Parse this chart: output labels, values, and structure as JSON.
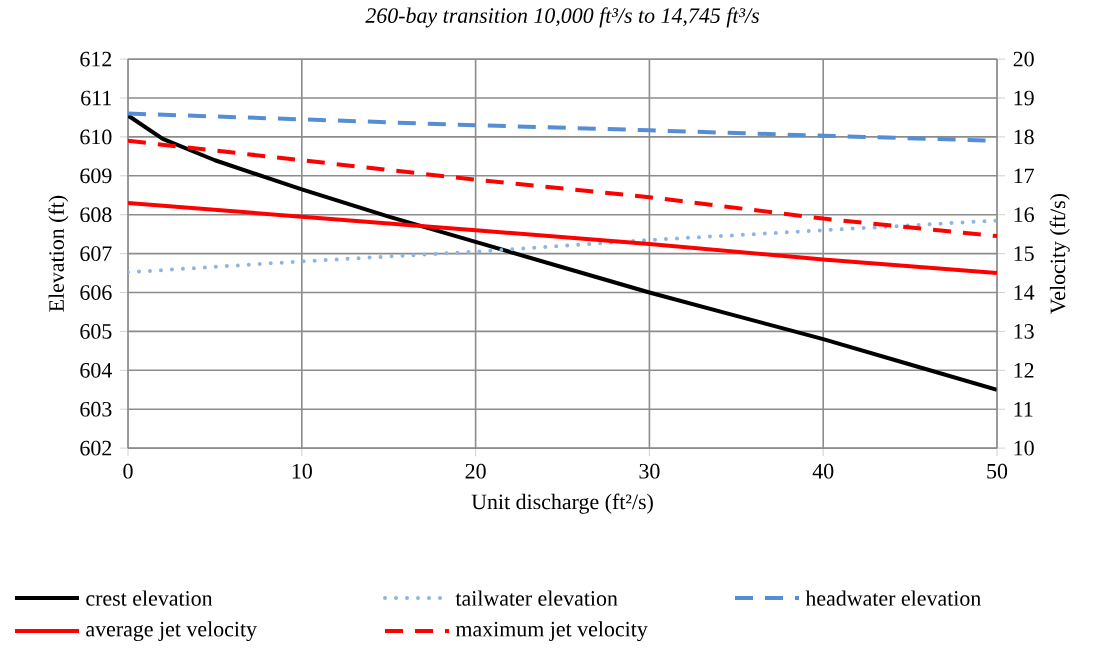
{
  "chart_data": {
    "type": "line",
    "title": "260-bay transition 10,000 ft³/s to 14,745 ft³/s",
    "xlabel": "Unit discharge (ft²/s)",
    "ylabel": "Elevation (ft)",
    "y2label": "Velocity (ft/s)",
    "xlim": [
      0,
      50
    ],
    "xticks": [
      0,
      10,
      20,
      30,
      40,
      50
    ],
    "ylim": [
      602,
      612
    ],
    "yticks": [
      602,
      603,
      604,
      605,
      606,
      607,
      608,
      609,
      610,
      611,
      612
    ],
    "y2lim": [
      10,
      20
    ],
    "y2ticks": [
      10,
      11,
      12,
      13,
      14,
      15,
      16,
      17,
      18,
      19,
      20
    ],
    "grid": true,
    "legend": "bottom",
    "marker": "none",
    "series": [
      {
        "name": "crest elevation",
        "color": "#000000",
        "line_style": "solid",
        "x": [
          0,
          2,
          5,
          10,
          15,
          20,
          25,
          30,
          35,
          40,
          45,
          50
        ],
        "values": [
          610.55,
          609.95,
          609.4,
          608.65,
          607.95,
          607.3,
          606.65,
          606.0,
          605.4,
          604.8,
          604.15,
          603.5
        ]
      },
      {
        "name": "tailwater elevation",
        "color": "#8eb4e3",
        "line_style": "dotted",
        "x": [
          0,
          10,
          20,
          30,
          40,
          50
        ],
        "values": [
          606.52,
          606.8,
          607.05,
          607.35,
          607.6,
          607.85
        ]
      },
      {
        "name": "headwater elevation",
        "color": "#558ed5",
        "line_style": "dashed",
        "x": [
          0,
          10,
          20,
          30,
          40,
          50
        ],
        "values": [
          610.6,
          610.45,
          610.3,
          610.17,
          610.03,
          609.9
        ]
      },
      {
        "name": "average jet velocity",
        "color": "#ff0000",
        "line_style": "solid",
        "axis": "y2",
        "x": [
          0,
          10,
          20,
          30,
          40,
          50
        ],
        "values": [
          16.3,
          15.95,
          15.6,
          15.25,
          14.85,
          14.5
        ]
      },
      {
        "name": "maximum jet velocity",
        "color": "#ff0000",
        "line_style": "dashed",
        "axis": "y2",
        "x": [
          0,
          10,
          20,
          30,
          40,
          50
        ],
        "values": [
          17.9,
          17.4,
          16.9,
          16.45,
          15.9,
          15.45
        ]
      }
    ]
  }
}
